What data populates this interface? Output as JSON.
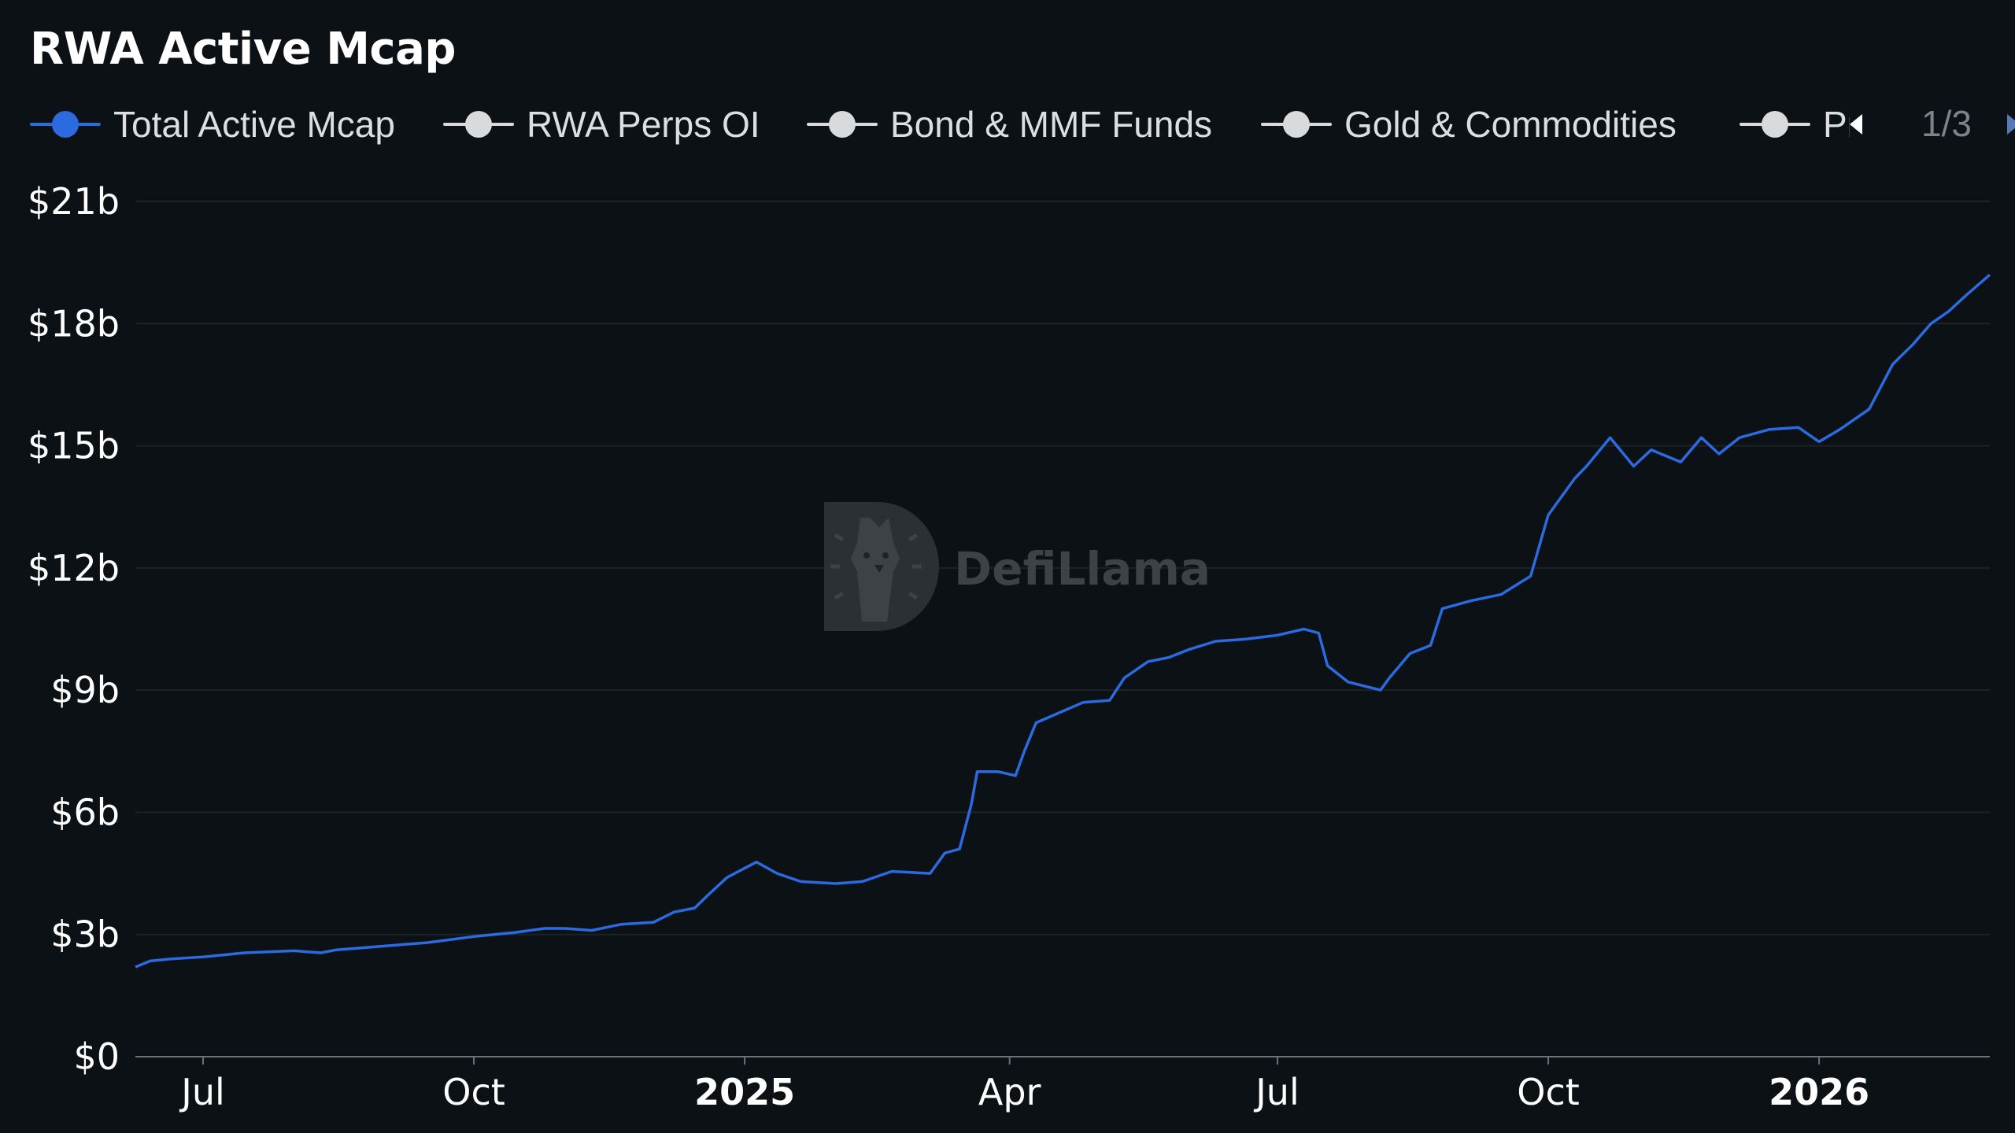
{
  "chart_data": {
    "type": "line",
    "title": "RWA Active Mcap",
    "legend": {
      "placement": "top-left",
      "items": [
        {
          "name": "Total Active Mcap",
          "color": "#2c6ae0",
          "active": true
        },
        {
          "name": "RWA Perps OI",
          "color": "#d9dadb",
          "active": false
        },
        {
          "name": "Bond & MMF Funds",
          "color": "#d9dadb",
          "active": false
        },
        {
          "name": "Gold & Commodities",
          "color": "#d9dadb",
          "active": false
        },
        {
          "name": "Private Credit",
          "color": "#d9dadb",
          "active": false
        }
      ],
      "page": "1/3"
    },
    "y_axis": {
      "ticks": [
        "$0",
        "$3b",
        "$6b",
        "$9b",
        "$12b",
        "$15b",
        "$18b",
        "$21b"
      ],
      "tick_values": [
        0,
        3,
        6,
        9,
        12,
        15,
        18,
        21
      ],
      "ylim": [
        0,
        21
      ],
      "unit": "billion USD"
    },
    "x_axis": {
      "range": [
        "2024-06-08",
        "2026-02-28"
      ],
      "ticks": [
        {
          "label": "Jul",
          "date": "2024-07-01",
          "bold": false
        },
        {
          "label": "Oct",
          "date": "2024-10-01",
          "bold": false
        },
        {
          "label": "2025",
          "date": "2025-01-01",
          "bold": true
        },
        {
          "label": "Apr",
          "date": "2025-04-01",
          "bold": false
        },
        {
          "label": "Jul",
          "date": "2025-07-01",
          "bold": false
        },
        {
          "label": "Oct",
          "date": "2025-10-01",
          "bold": false
        },
        {
          "label": "2026",
          "date": "2026-01-01",
          "bold": true
        }
      ]
    },
    "grid": true,
    "watermark": "DefiLlama",
    "series": [
      {
        "name": "Total Active Mcap",
        "color": "#2c6ae0",
        "points": [
          [
            "2024-06-08",
            2.2
          ],
          [
            "2024-06-13",
            2.35
          ],
          [
            "2024-06-20",
            2.4
          ],
          [
            "2024-07-01",
            2.45
          ],
          [
            "2024-07-15",
            2.55
          ],
          [
            "2024-08-01",
            2.6
          ],
          [
            "2024-08-10",
            2.55
          ],
          [
            "2024-08-15",
            2.62
          ],
          [
            "2024-09-01",
            2.72
          ],
          [
            "2024-09-15",
            2.8
          ],
          [
            "2024-10-01",
            2.95
          ],
          [
            "2024-10-15",
            3.05
          ],
          [
            "2024-10-25",
            3.15
          ],
          [
            "2024-11-01",
            3.15
          ],
          [
            "2024-11-10",
            3.1
          ],
          [
            "2024-11-20",
            3.25
          ],
          [
            "2024-12-01",
            3.3
          ],
          [
            "2024-12-08",
            3.55
          ],
          [
            "2024-12-15",
            3.65
          ],
          [
            "2024-12-20",
            4.0
          ],
          [
            "2024-12-26",
            4.4
          ],
          [
            "2025-01-05",
            4.78
          ],
          [
            "2025-01-12",
            4.5
          ],
          [
            "2025-01-20",
            4.3
          ],
          [
            "2025-02-01",
            4.25
          ],
          [
            "2025-02-10",
            4.3
          ],
          [
            "2025-02-20",
            4.55
          ],
          [
            "2025-03-05",
            4.5
          ],
          [
            "2025-03-10",
            5.0
          ],
          [
            "2025-03-15",
            5.1
          ],
          [
            "2025-03-19",
            6.2
          ],
          [
            "2025-03-21",
            7.0
          ],
          [
            "2025-03-28",
            7.0
          ],
          [
            "2025-04-03",
            6.9
          ],
          [
            "2025-04-06",
            7.5
          ],
          [
            "2025-04-10",
            8.2
          ],
          [
            "2025-04-18",
            8.45
          ],
          [
            "2025-04-26",
            8.7
          ],
          [
            "2025-05-05",
            8.75
          ],
          [
            "2025-05-10",
            9.3
          ],
          [
            "2025-05-18",
            9.7
          ],
          [
            "2025-05-25",
            9.8
          ],
          [
            "2025-06-01",
            10.0
          ],
          [
            "2025-06-10",
            10.2
          ],
          [
            "2025-06-20",
            10.25
          ],
          [
            "2025-07-01",
            10.35
          ],
          [
            "2025-07-10",
            10.5
          ],
          [
            "2025-07-15",
            10.4
          ],
          [
            "2025-07-18",
            9.6
          ],
          [
            "2025-07-25",
            9.2
          ],
          [
            "2025-08-05",
            9.0
          ],
          [
            "2025-08-08",
            9.3
          ],
          [
            "2025-08-15",
            9.9
          ],
          [
            "2025-08-22",
            10.1
          ],
          [
            "2025-08-26",
            11.0
          ],
          [
            "2025-09-05",
            11.2
          ],
          [
            "2025-09-15",
            11.35
          ],
          [
            "2025-09-25",
            11.8
          ],
          [
            "2025-10-01",
            13.3
          ],
          [
            "2025-10-10",
            14.2
          ],
          [
            "2025-10-14",
            14.5
          ],
          [
            "2025-10-22",
            15.2
          ],
          [
            "2025-10-30",
            14.5
          ],
          [
            "2025-11-05",
            14.9
          ],
          [
            "2025-11-15",
            14.6
          ],
          [
            "2025-11-22",
            15.2
          ],
          [
            "2025-11-28",
            14.8
          ],
          [
            "2025-12-05",
            15.2
          ],
          [
            "2025-12-15",
            15.4
          ],
          [
            "2025-12-25",
            15.45
          ],
          [
            "2026-01-01",
            15.1
          ],
          [
            "2026-01-08",
            15.4
          ],
          [
            "2026-01-18",
            15.9
          ],
          [
            "2026-01-26",
            17.0
          ],
          [
            "2026-02-02",
            17.5
          ],
          [
            "2026-02-08",
            18.0
          ],
          [
            "2026-02-14",
            18.3
          ],
          [
            "2026-02-20",
            18.7
          ],
          [
            "2026-02-28",
            19.2
          ]
        ]
      }
    ]
  }
}
